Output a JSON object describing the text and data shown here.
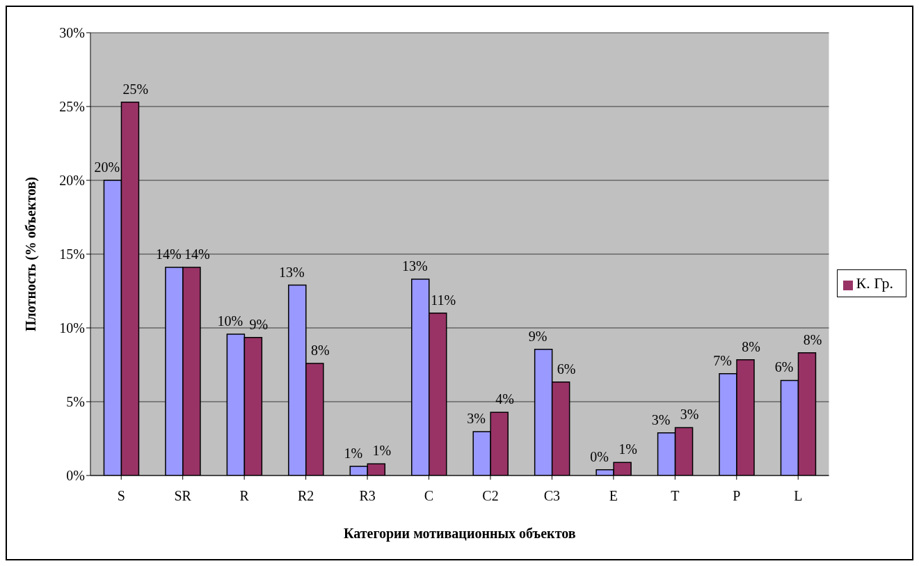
{
  "chart_data": {
    "type": "bar",
    "xlabel": "Категории мотивационных объектов",
    "ylabel": "Плотность (% объектов)",
    "categories": [
      "S",
      "SR",
      "R",
      "R2",
      "R3",
      "C",
      "C2",
      "C3",
      "E",
      "T",
      "P",
      "L"
    ],
    "series": [
      {
        "color": "#9999ff",
        "values": [
          20.0,
          14.1,
          9.57,
          12.9,
          0.63,
          13.3,
          2.97,
          8.55,
          0.39,
          2.89,
          6.9,
          6.44
        ],
        "value_labels": [
          "20%",
          "14%",
          "10%",
          "13%",
          "1%",
          "13%",
          "3%",
          "9%",
          "0%",
          "3%",
          "7%",
          "6%"
        ]
      },
      {
        "name": "К. Гр.",
        "color": "#993366",
        "values": [
          25.3,
          14.1,
          9.35,
          7.6,
          0.79,
          11.0,
          4.28,
          6.33,
          0.88,
          3.24,
          7.84,
          8.31
        ],
        "value_labels": [
          "25%",
          "14%",
          "9%",
          "8%",
          "1%",
          "11%",
          "4%",
          "6%",
          "1%",
          "3%",
          "8%",
          "8%"
        ]
      }
    ],
    "ylim": [
      0,
      30
    ],
    "yticks": [
      {
        "value": 0,
        "label": "0%"
      },
      {
        "value": 5,
        "label": "5%"
      },
      {
        "value": 10,
        "label": "10%"
      },
      {
        "value": 15,
        "label": "15%"
      },
      {
        "value": 20,
        "label": "20%"
      },
      {
        "value": 25,
        "label": "25%"
      },
      {
        "value": 30,
        "label": "30%"
      }
    ],
    "grid": "y",
    "legend": "right"
  }
}
